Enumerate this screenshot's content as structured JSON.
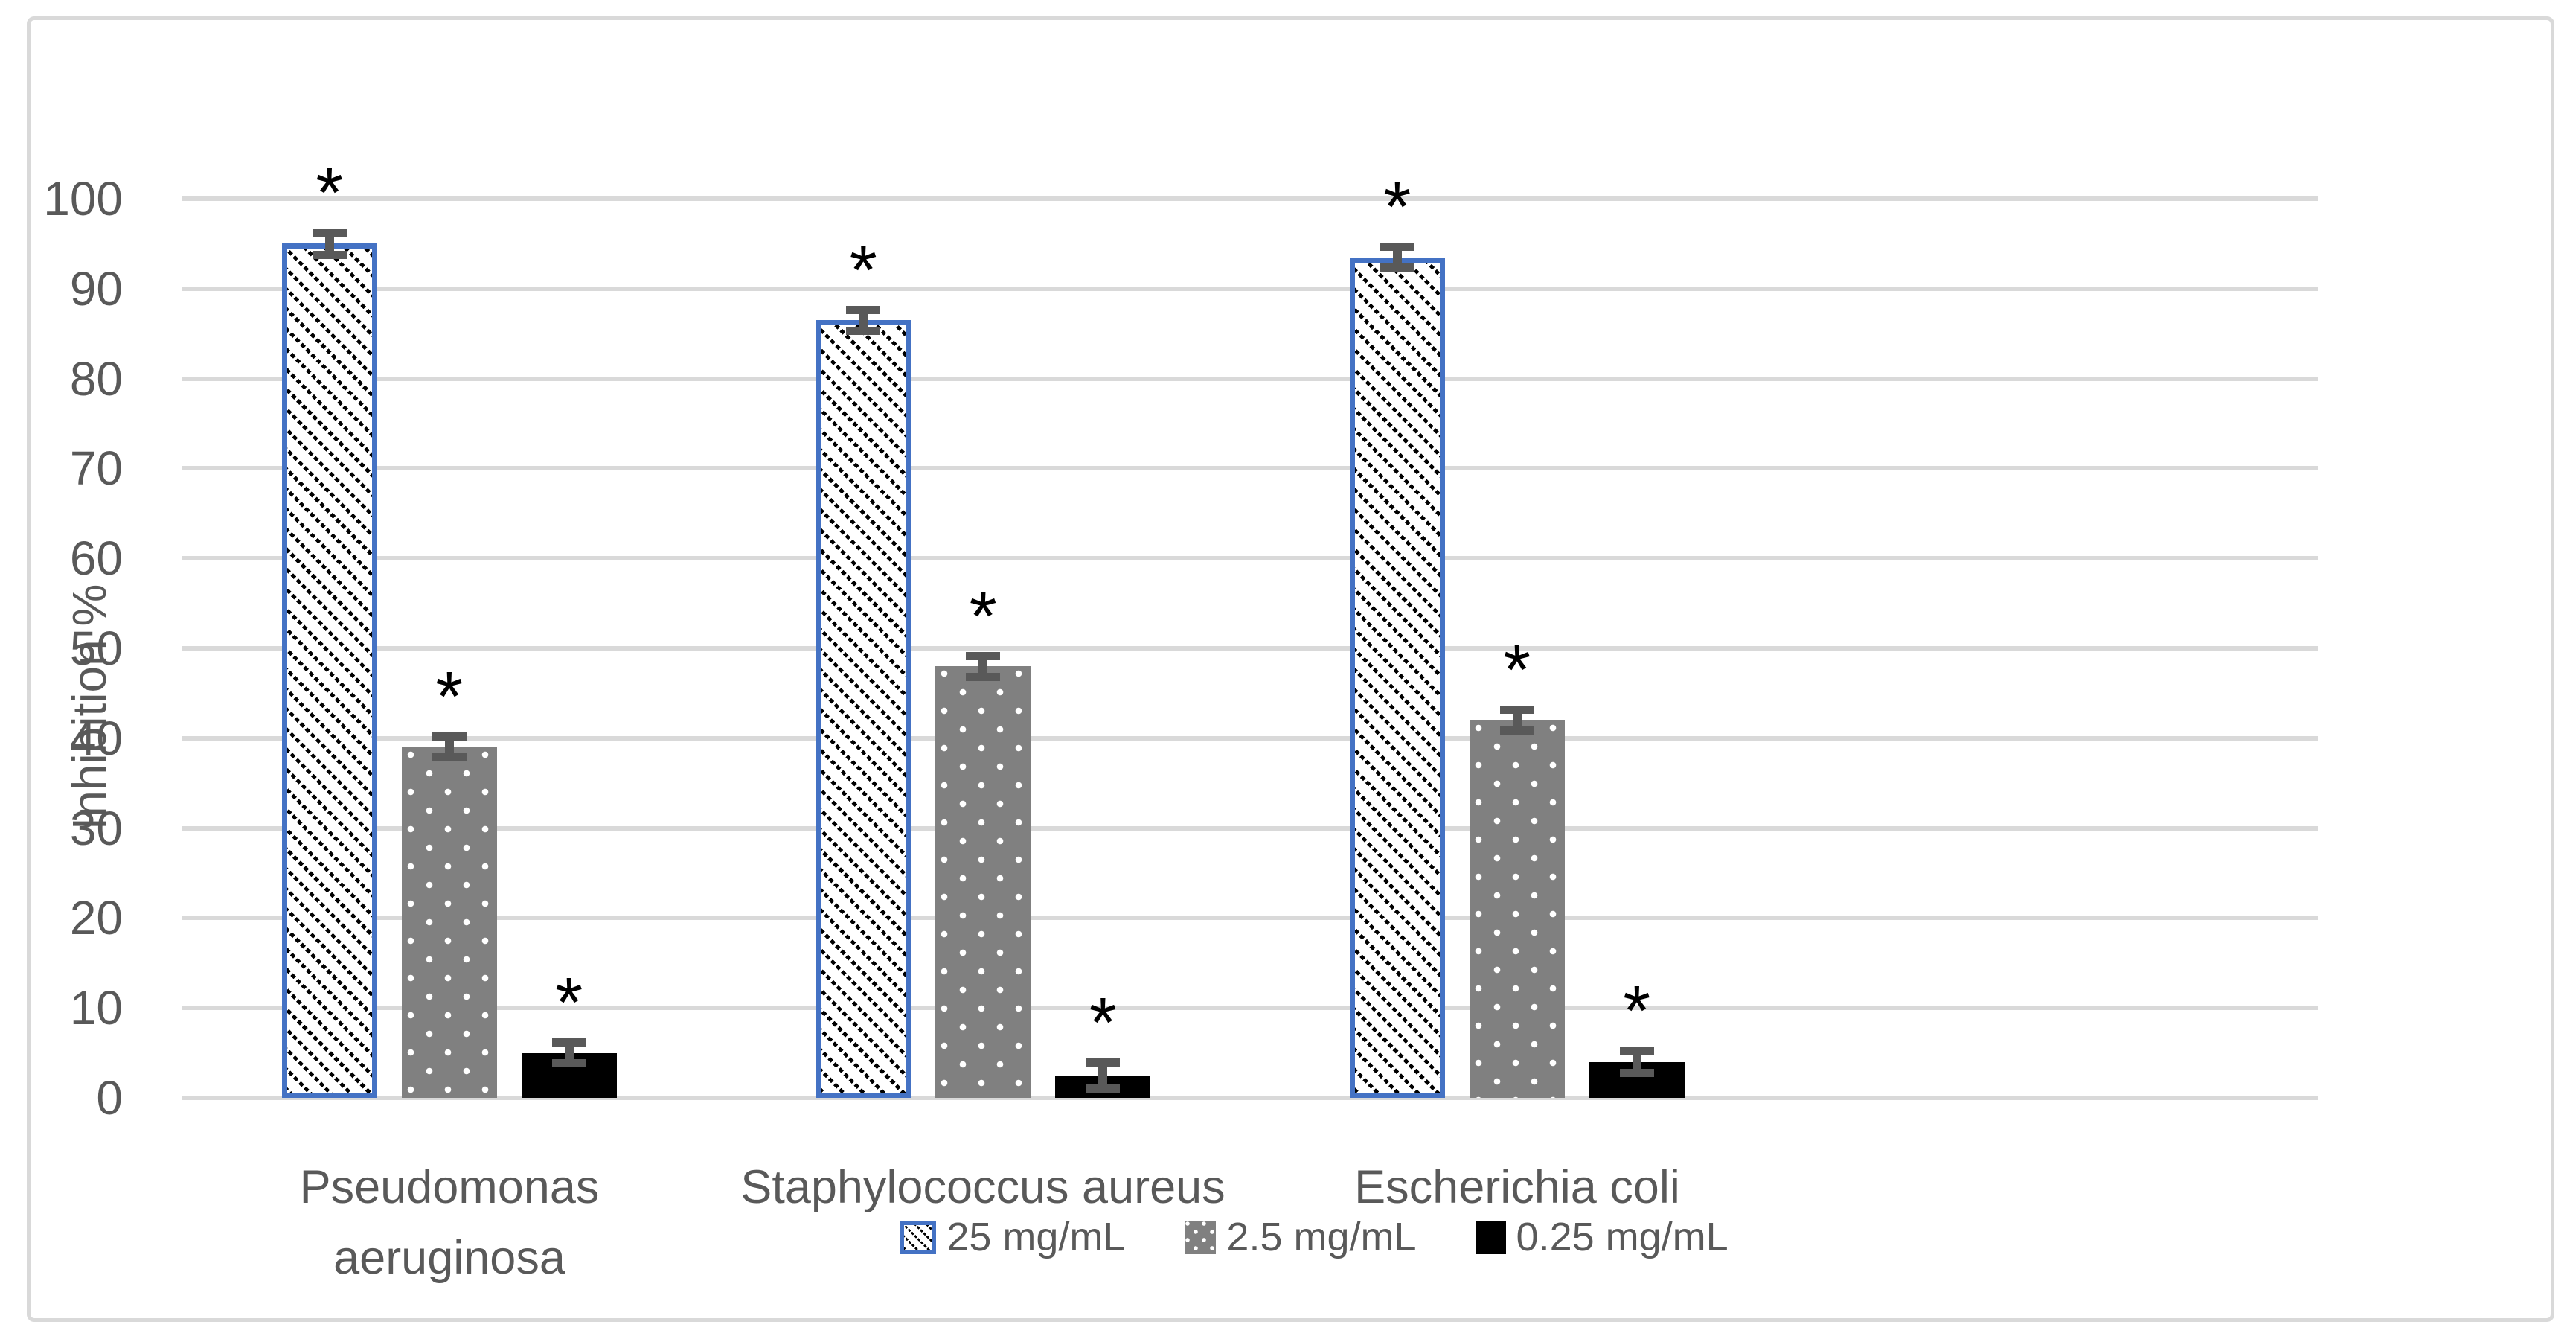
{
  "chart_data": {
    "type": "bar",
    "title": "",
    "xlabel": "",
    "ylabel": "Inhibition %",
    "ylim": [
      0,
      100
    ],
    "ytick_step": 10,
    "yticks": [
      0,
      10,
      20,
      30,
      40,
      50,
      60,
      70,
      80,
      90,
      100
    ],
    "grid": true,
    "legend_position": "bottom",
    "categories": [
      "Pseudomonas\naeruginosa",
      "Staphylococcus aureus",
      "Escherichia coli"
    ],
    "series": [
      {
        "name": "25 mg/mL",
        "values": [
          95,
          86.5,
          93.5
        ],
        "errors": [
          1.3,
          1.2,
          1.2
        ],
        "pattern": "black diagonal hatch on white with blue border",
        "color": "#4472C4"
      },
      {
        "name": "2.5 mg/mL",
        "values": [
          39,
          48,
          42
        ],
        "errors": [
          1.2,
          1.2,
          1.2
        ],
        "pattern": "gray with white dots",
        "color": "#808080"
      },
      {
        "name": "0.25 mg/mL",
        "values": [
          5,
          2.5,
          4
        ],
        "errors": [
          1.2,
          1.5,
          1.3
        ],
        "pattern": "solid black",
        "color": "#000000"
      }
    ],
    "significance_marker": "*",
    "significance_on_every_bar": true
  },
  "colors": {
    "gridline": "#D9D9D9",
    "chart_border": "#D9D9D9",
    "axis_text": "#595959",
    "error_bar": "#595959",
    "series_blue_border": "#4472C4",
    "series_gray": "#808080",
    "series_black": "#000000"
  }
}
